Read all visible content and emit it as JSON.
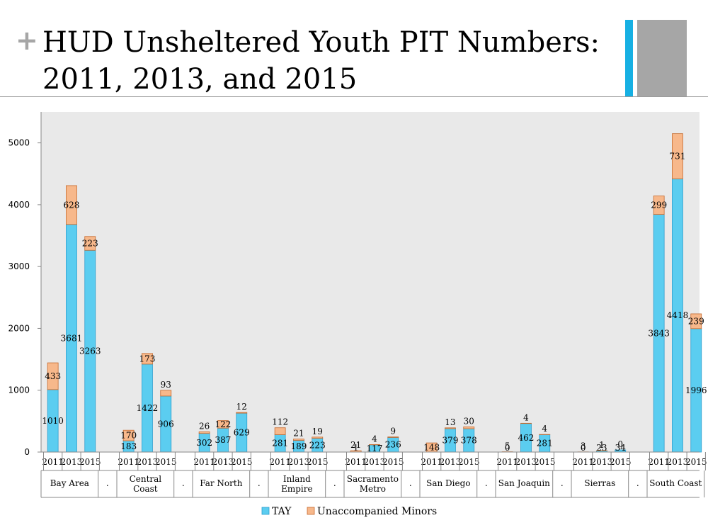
{
  "slide": {
    "plus_glyph": "+",
    "title_line1": "HUD Unsheltered Youth PIT Numbers:",
    "title_line2": "2011, 2013, and 2015"
  },
  "colors": {
    "tay": "#5bcdf0",
    "minors": "#f7b88b",
    "accent_blue": "#16b0e3",
    "accent_gray": "#a6a6a6"
  },
  "chart_data": {
    "type": "bar",
    "stacked": true,
    "ylim": [
      0,
      5500
    ],
    "yticks": [
      0,
      1000,
      2000,
      3000,
      4000,
      5000
    ],
    "grid": false,
    "legend_position": "bottom",
    "years": [
      "2011",
      "2013",
      "2015"
    ],
    "groups": [
      {
        "label": "Bay Area",
        "tay": [
          1010,
          3681,
          3263
        ],
        "minors": [
          433,
          628,
          223
        ]
      },
      {
        "label": "Central Coast",
        "tay": [
          183,
          1422,
          906
        ],
        "minors": [
          170,
          173,
          93
        ]
      },
      {
        "label": "Far North",
        "tay": [
          302,
          387,
          629
        ],
        "minors": [
          26,
          122,
          12
        ]
      },
      {
        "label": "Inland Empire",
        "tay": [
          281,
          189,
          223
        ],
        "minors": [
          112,
          21,
          19
        ]
      },
      {
        "label": "Sacramento Metro",
        "tay": [
          1,
          117,
          236
        ],
        "minors": [
          21,
          4,
          9
        ]
      },
      {
        "label": "San Diego",
        "tay": [
          0,
          379,
          378
        ],
        "minors": [
          148,
          13,
          30
        ]
      },
      {
        "label": "San Joaquin",
        "tay": [
          0,
          462,
          281
        ],
        "minors": [
          5,
          4,
          4
        ]
      },
      {
        "label": "Sierras",
        "tay": [
          0,
          23,
          34
        ],
        "minors": [
          3,
          1,
          0
        ]
      },
      {
        "label": "South Coast",
        "tay": [
          3843,
          4418,
          1996
        ],
        "minors": [
          299,
          731,
          239
        ]
      }
    ],
    "separator_label": ".",
    "series": [
      {
        "name": "TAY",
        "key": "tay"
      },
      {
        "name": "Unaccompanied Minors",
        "key": "minors"
      }
    ]
  }
}
